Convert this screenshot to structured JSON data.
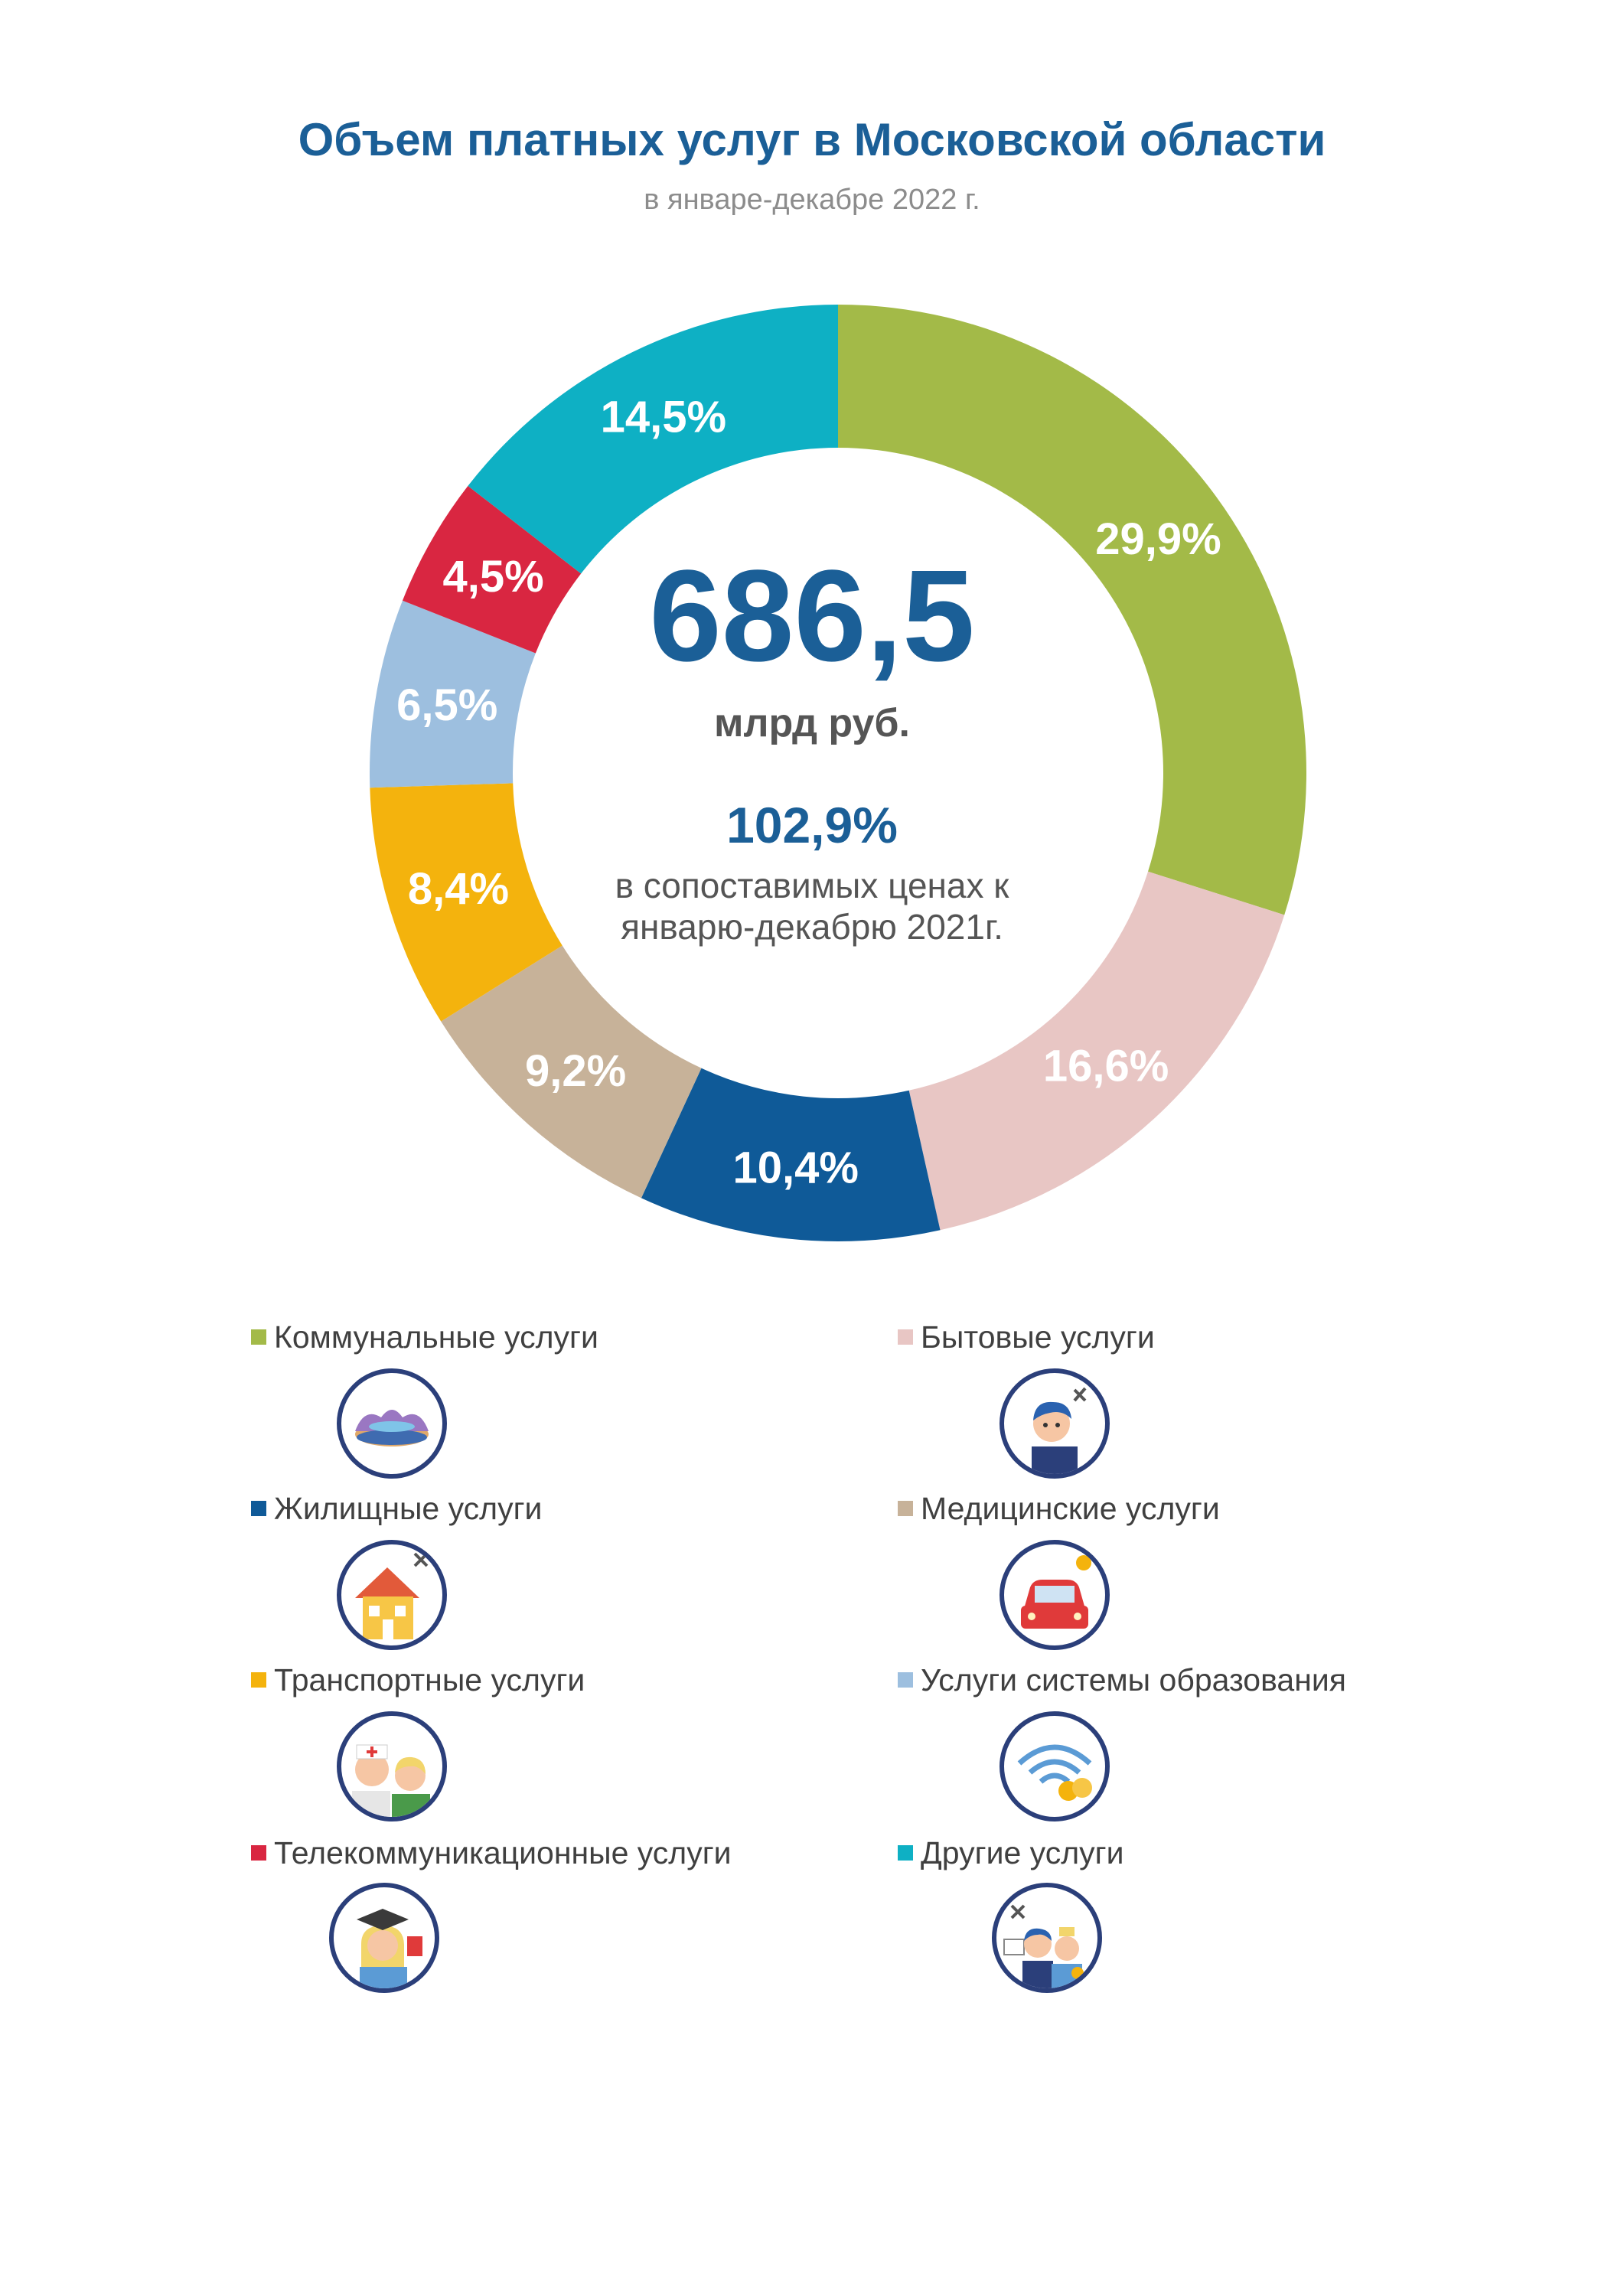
{
  "title": "Объем платных услуг в Московской области",
  "subtitle": "в январе-декабре 2022 г.",
  "center": {
    "total": "686,5",
    "unit": "млрд руб.",
    "growth": "102,9%",
    "note": "в сопоставимых ценах к январю-декабрю 2021г."
  },
  "chart_data": {
    "type": "pie",
    "title": "Объем платных услуг в Московской области",
    "subtitle": "в январе-декабре 2022 г.",
    "unit": "%",
    "total": 686.5,
    "total_unit": "млрд руб.",
    "slices": [
      {
        "name": "Коммунальные услуги",
        "value": 29.9,
        "label": "29,9%",
        "color": "#a3ba48"
      },
      {
        "name": "Бытовые услуги",
        "value": 16.6,
        "label": "16,6%",
        "color": "#e8c6c4"
      },
      {
        "name": "Жилищные услуги",
        "value": 10.4,
        "label": "10,4%",
        "color": "#0f5a98"
      },
      {
        "name": "Медицинские услуги",
        "value": 9.2,
        "label": "9,2%",
        "color": "#c7b299"
      },
      {
        "name": "Транспортные услуги",
        "value": 8.4,
        "label": "8,4%",
        "color": "#f4b30d"
      },
      {
        "name": "Услуги системы образования",
        "value": 6.5,
        "label": "6,5%",
        "color": "#9dbfdf"
      },
      {
        "name": "Телекоммуникационные услуги",
        "value": 4.5,
        "label": "4,5%",
        "color": "#d92641"
      },
      {
        "name": "Другие услуги",
        "value": 14.5,
        "label": "14,5%",
        "color": "#0eb0c4"
      }
    ]
  },
  "legend": [
    {
      "label": "Коммунальные услуги",
      "color": "#a3ba48",
      "icon": "stadium-icon"
    },
    {
      "label": "Бытовые услуги",
      "color": "#e8c6c4",
      "icon": "barber-icon"
    },
    {
      "label": "Жилищные услуги",
      "color": "#0f5a98",
      "icon": "house-icon"
    },
    {
      "label": "Медицинские услуги",
      "color": "#c7b299",
      "icon": "car-icon"
    },
    {
      "label": "Транспортные услуги",
      "color": "#f4b30d",
      "icon": "doctor-icon"
    },
    {
      "label": "Услуги системы образования",
      "color": "#9dbfdf",
      "icon": "wifi-icon"
    },
    {
      "label": "Телекоммуникационные услуги",
      "color": "#d92641",
      "icon": "graduate-icon"
    },
    {
      "label": "Другие услуги",
      "color": "#0eb0c4",
      "icon": "services-icon"
    }
  ]
}
